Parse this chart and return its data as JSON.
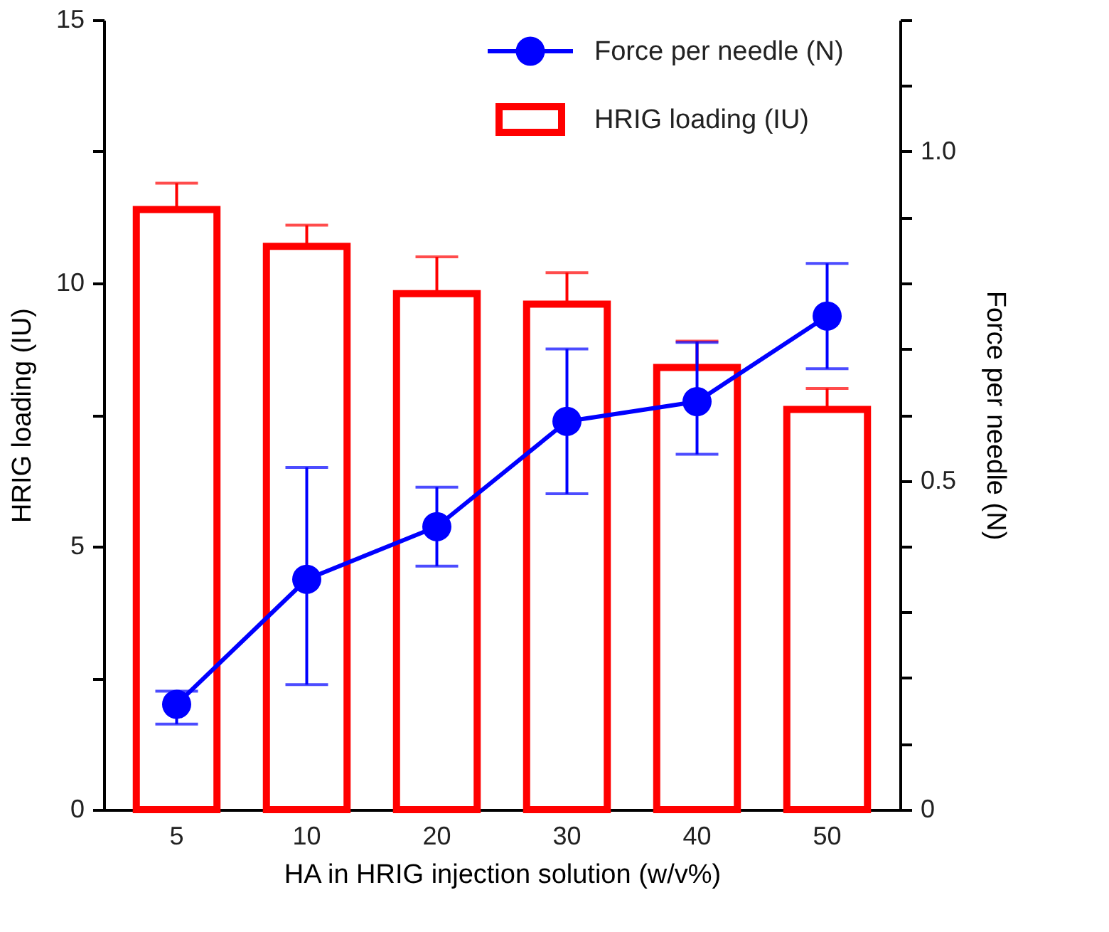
{
  "chart_data": {
    "type": "bar",
    "xlabel": "HA in HRIG injection solution (w/v%)",
    "ylabel": "HRIG loading (IU)",
    "y2label": "Force per needle (N)",
    "categories": [
      "5",
      "10",
      "20",
      "30",
      "40",
      "50"
    ],
    "series": [
      {
        "name": "HRIG loading (IU)",
        "color": "#ff0000",
        "values": [
          11.4,
          10.7,
          9.8,
          9.6,
          8.4,
          7.6
        ],
        "errors": [
          [
            11.4,
            11.9
          ],
          [
            10.7,
            11.1
          ],
          [
            9.8,
            10.5
          ],
          [
            9.6,
            10.2
          ],
          [
            8.4,
            8.9
          ],
          [
            7.6,
            8.0
          ]
        ]
      },
      {
        "name": "Force per needle (N)",
        "type": "line",
        "axis": "y2",
        "color": "#0000ff",
        "values": [
          0.16,
          0.35,
          0.43,
          0.59,
          0.62,
          0.75
        ],
        "errors": [
          [
            0.13,
            0.18
          ],
          [
            0.19,
            0.52
          ],
          [
            0.37,
            0.49
          ],
          [
            0.48,
            0.7
          ],
          [
            0.54,
            0.71
          ],
          [
            0.67,
            0.83
          ]
        ]
      }
    ],
    "ylim": [
      0,
      15
    ],
    "yticks": [
      0,
      {
        "value": 2.5,
        "label": null
      },
      5,
      {
        "value": 7.5,
        "label": null
      },
      10,
      {
        "value": 12.5,
        "label": null
      },
      15
    ],
    "y2lim": [
      0,
      1.2
    ],
    "y2ticks": [
      0,
      {
        "value": 0.1,
        "label": null
      },
      {
        "value": 0.2,
        "label": null
      },
      {
        "value": 0.3,
        "label": null
      },
      {
        "value": 0.4,
        "label": null
      },
      0.5,
      {
        "value": 0.6,
        "label": null
      },
      {
        "value": 0.7,
        "label": null
      },
      {
        "value": 0.8,
        "label": null
      },
      {
        "value": 0.9,
        "label": null
      },
      {
        "value": 1,
        "label": "1.0"
      },
      {
        "value": 1.1,
        "label": null
      },
      {
        "value": 1.2,
        "label": null
      }
    ],
    "marker": "circle",
    "grid": false,
    "legend": "top right"
  }
}
